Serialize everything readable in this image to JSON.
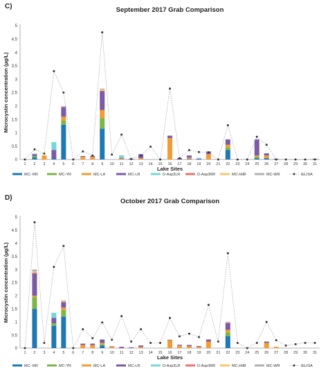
{
  "figure": {
    "panel_c_label": "C)",
    "panel_d_label": "D)"
  },
  "colors": {
    "MC-RR": "#1f77b4",
    "MC-YR": "#7ab648",
    "MC-LA": "#f39c34",
    "MC-LR": "#7b5aa6",
    "D-Asp3LR": "#76d7d6",
    "D-Asp3RR": "#f07070",
    "MC-HilR": "#f5c76b",
    "MC-WR": "#b0b0b0",
    "iELISA": "#333333"
  },
  "chart_data": [
    {
      "type": "bar",
      "stacked": true,
      "title": "September 2017 Grab Comparison",
      "xlabel": "Lake Sites",
      "ylabel": "Microcystin concentration (µg/L)",
      "categories": [
        "1",
        "2",
        "3",
        "4",
        "5",
        "6",
        "7",
        "8",
        "9",
        "10",
        "11",
        "12",
        "13",
        "14",
        "15",
        "16",
        "17",
        "18",
        "19",
        "20",
        "21",
        "22",
        "23",
        "24",
        "25",
        "26",
        "27",
        "28",
        "29",
        "30",
        "31"
      ],
      "yticks": [
        "0",
        "0.5",
        "1",
        "1.5",
        "2",
        "2.5",
        "3",
        "3.5",
        "4",
        "4.5",
        "5"
      ],
      "ylim": [
        0,
        5
      ],
      "grid": false,
      "legend_position": "bottom",
      "series": [
        {
          "name": "MC- RR",
          "key": "MC-RR",
          "values": [
            0,
            0.08,
            0,
            0.05,
            1.3,
            0,
            0,
            0,
            1.15,
            0,
            0,
            0,
            0,
            0,
            0,
            0,
            0,
            0.02,
            0,
            0,
            0,
            0.35,
            0,
            0,
            0.05,
            0.05,
            0,
            0,
            0,
            0,
            0
          ]
        },
        {
          "name": "MC-YR",
          "key": "MC-YR",
          "values": [
            0,
            0.05,
            0,
            0,
            0.15,
            0,
            0,
            0,
            0.4,
            0,
            0,
            0,
            0,
            0,
            0,
            0,
            0,
            0,
            0,
            0,
            0,
            0.1,
            0,
            0,
            0.05,
            0,
            0,
            0,
            0,
            0,
            0
          ]
        },
        {
          "name": "MC-LA",
          "key": "MC-LA",
          "values": [
            0,
            0,
            0.15,
            0,
            0.15,
            0,
            0.1,
            0.1,
            0.3,
            0,
            0.03,
            0,
            0.05,
            0,
            0,
            0.8,
            0,
            0.05,
            0,
            0.2,
            0,
            0.1,
            0,
            0,
            0.05,
            0.1,
            0,
            0,
            0,
            0,
            0
          ]
        },
        {
          "name": "MC-LR",
          "key": "MC-LR",
          "values": [
            0,
            0.07,
            0,
            0.3,
            0.35,
            0,
            0.03,
            0.03,
            0.7,
            0,
            0.03,
            0.03,
            0.15,
            0,
            0,
            0.08,
            0.05,
            0.08,
            0.03,
            0.1,
            0,
            0.2,
            0,
            0,
            0.6,
            0.08,
            0.03,
            0,
            0,
            0,
            0.03
          ]
        },
        {
          "name": "D-Asp3LR",
          "key": "D-Asp3LR",
          "values": [
            0,
            0.02,
            0,
            0.3,
            0,
            0,
            0,
            0,
            0,
            0,
            0.08,
            0,
            0,
            0,
            0,
            0,
            0,
            0,
            0.03,
            0,
            0,
            0,
            0,
            0,
            0,
            0,
            0,
            0,
            0,
            0,
            0
          ]
        },
        {
          "name": "D-Asp3RR",
          "key": "D-Asp3RR",
          "values": [
            0,
            0,
            0,
            0,
            0.02,
            0,
            0,
            0,
            0.02,
            0,
            0,
            0,
            0,
            0,
            0,
            0,
            0,
            0,
            0,
            0,
            0,
            0,
            0,
            0,
            0,
            0,
            0,
            0,
            0,
            0,
            0
          ]
        },
        {
          "name": "MC-HilR",
          "key": "MC-HilR",
          "values": [
            0,
            0,
            0,
            0,
            0,
            0,
            0,
            0,
            0.05,
            0,
            0,
            0,
            0,
            0,
            0,
            0,
            0,
            0,
            0,
            0,
            0,
            0,
            0,
            0,
            0,
            0,
            0,
            0,
            0,
            0,
            0
          ]
        },
        {
          "name": "MC-WR",
          "key": "MC-WR",
          "values": [
            0,
            0,
            0,
            0,
            0.02,
            0,
            0,
            0,
            0.03,
            0,
            0.02,
            0,
            0,
            0,
            0,
            0.02,
            0,
            0,
            0,
            0,
            0,
            0,
            0,
            0,
            0,
            0,
            0,
            0,
            0,
            0,
            0
          ]
        }
      ],
      "elisa": {
        "name": "iELISA",
        "key": "iELISA",
        "values": [
          0,
          0.38,
          0.22,
          3.3,
          2.5,
          0,
          0.3,
          0.15,
          4.75,
          0.18,
          0.93,
          0.02,
          0.15,
          0.48,
          0,
          2.65,
          0.05,
          0.35,
          0.28,
          0.27,
          0,
          1.28,
          0,
          0,
          0.85,
          0.55,
          0,
          0,
          0,
          0,
          0
        ]
      },
      "legend": [
        "MC- RR",
        "MC-YR",
        "MC-LA",
        "MC-LR",
        "D-Asp3LR",
        "D-Asp3RR",
        "MC-HilR",
        "MC-WR",
        "iELISA"
      ]
    },
    {
      "type": "bar",
      "stacked": true,
      "title": "October 2017 Grab Comparison",
      "xlabel": "Lake Sites",
      "ylabel": "Microcystin concentration (µg/L)",
      "categories": [
        "1",
        "2",
        "3",
        "4",
        "5",
        "6",
        "7",
        "8",
        "9",
        "10",
        "11",
        "12",
        "13",
        "14",
        "15",
        "16",
        "17",
        "18",
        "19",
        "20",
        "21",
        "22",
        "23",
        "24",
        "25",
        "26",
        "27",
        "28",
        "29",
        "30",
        "31"
      ],
      "yticks": [
        "0",
        "0.5",
        "1",
        "1.5",
        "2",
        "2.5",
        "3",
        "3.5",
        "4",
        "4.5",
        "5"
      ],
      "ylim": [
        0,
        5
      ],
      "grid": false,
      "legend_position": "bottom",
      "series": [
        {
          "name": "MC- RR",
          "key": "MC-RR",
          "values": [
            0,
            1.5,
            0,
            0.85,
            1.2,
            0,
            0,
            0,
            0.1,
            0,
            0,
            0,
            0,
            0,
            0,
            0,
            0,
            0,
            0,
            0,
            0,
            0.45,
            0,
            0,
            0,
            0,
            0,
            0,
            0,
            0,
            0
          ]
        },
        {
          "name": "MC-YR",
          "key": "MC-YR",
          "values": [
            0,
            0.45,
            0,
            0.1,
            0.25,
            0,
            0,
            0,
            0.05,
            0,
            0,
            0,
            0,
            0,
            0,
            0,
            0,
            0,
            0,
            0,
            0,
            0.15,
            0,
            0,
            0,
            0,
            0,
            0,
            0,
            0,
            0
          ]
        },
        {
          "name": "MC-LA",
          "key": "MC-LA",
          "values": [
            0,
            0.05,
            0,
            0,
            0.1,
            0,
            0.12,
            0.12,
            0.05,
            0.05,
            0,
            0,
            0.05,
            0,
            0,
            0.3,
            0.1,
            0.08,
            0.05,
            0.25,
            0,
            0.1,
            0,
            0,
            0,
            0.2,
            0.05,
            0,
            0,
            0,
            0
          ]
        },
        {
          "name": "MC-LR",
          "key": "MC-LR",
          "values": [
            0,
            0.85,
            0,
            0.2,
            0.2,
            0,
            0.05,
            0.05,
            0.12,
            0.02,
            0.05,
            0.03,
            0.05,
            0,
            0,
            0.02,
            0.03,
            0.04,
            0.03,
            0.08,
            0,
            0.25,
            0,
            0,
            0,
            0.05,
            0,
            0,
            0,
            0,
            0
          ]
        },
        {
          "name": "D-Asp3LR",
          "key": "D-Asp3LR",
          "values": [
            0,
            0,
            0,
            0.2,
            0,
            0,
            0,
            0,
            0,
            0,
            0,
            0,
            0,
            0,
            0,
            0,
            0,
            0,
            0,
            0,
            0,
            0,
            0,
            0,
            0,
            0,
            0,
            0,
            0,
            0,
            0
          ]
        },
        {
          "name": "D-Asp3RR",
          "key": "D-Asp3RR",
          "values": [
            0,
            0.03,
            0,
            0,
            0.02,
            0,
            0,
            0,
            0,
            0,
            0,
            0,
            0,
            0,
            0,
            0,
            0,
            0,
            0,
            0,
            0,
            0.02,
            0,
            0,
            0,
            0,
            0,
            0,
            0,
            0,
            0
          ]
        },
        {
          "name": "MC-HilR",
          "key": "MC-HilR",
          "values": [
            0,
            0.05,
            0,
            0,
            0.02,
            0,
            0,
            0,
            0,
            0,
            0,
            0,
            0,
            0,
            0,
            0,
            0,
            0,
            0,
            0,
            0,
            0,
            0,
            0,
            0,
            0,
            0,
            0,
            0,
            0,
            0
          ]
        },
        {
          "name": "MC-WR",
          "key": "MC-WR",
          "values": [
            0,
            0.07,
            0,
            0,
            0.03,
            0,
            0,
            0,
            0.02,
            0,
            0,
            0,
            0,
            0,
            0,
            0,
            0,
            0,
            0,
            0,
            0,
            0.03,
            0,
            0,
            0,
            0,
            0,
            0,
            0,
            0,
            0
          ]
        }
      ],
      "elisa": {
        "name": "iELISA",
        "key": "iELISA",
        "values": [
          0,
          4.8,
          0.2,
          3.1,
          3.9,
          0,
          0.72,
          0.38,
          0.98,
          0.32,
          1.22,
          0.25,
          0.72,
          0.2,
          0.2,
          1.15,
          0.45,
          0.55,
          0.42,
          1.65,
          0.25,
          3.62,
          0.2,
          0,
          0.2,
          1,
          0.3,
          0.1,
          0.15,
          0.2,
          0.2
        ]
      },
      "legend": [
        "MC- RR",
        "MC-YR",
        "MC-LA",
        "MC-LR",
        "D-Asp3LR",
        "D-Asp3RR",
        "MC-HilR",
        "MC-WR",
        "iELISA"
      ]
    }
  ]
}
